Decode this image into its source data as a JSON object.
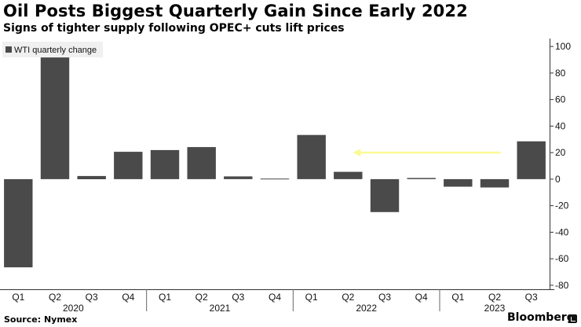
{
  "header": {
    "title": "Oil Posts Biggest Quarterly Gain Since Early 2022",
    "subtitle": "Signs of tighter supply following OPEC+ cuts lift prices"
  },
  "footer": {
    "source": "Source: Nymex",
    "brand": "Bloomberg"
  },
  "chart_data": {
    "type": "bar",
    "categories": [
      "Q1",
      "Q2",
      "Q3",
      "Q4",
      "Q1",
      "Q2",
      "Q3",
      "Q4",
      "Q1",
      "Q2",
      "Q3",
      "Q4",
      "Q1",
      "Q2",
      "Q3"
    ],
    "years": [
      {
        "label": "2020",
        "quarters": [
          "Q1",
          "Q2",
          "Q3",
          "Q4"
        ]
      },
      {
        "label": "2021",
        "quarters": [
          "Q1",
          "Q2",
          "Q3",
          "Q4"
        ]
      },
      {
        "label": "2022",
        "quarters": [
          "Q1",
          "Q2",
          "Q3",
          "Q4"
        ]
      },
      {
        "label": "2023",
        "quarters": [
          "Q1",
          "Q2",
          "Q3"
        ]
      }
    ],
    "series": [
      {
        "name": "WTI quarterly change",
        "values": [
          -66.5,
          91.7,
          2.4,
          20.6,
          21.9,
          24.2,
          2.1,
          0.4,
          33.3,
          5.5,
          -24.8,
          0.9,
          -5.7,
          -6.3,
          28.5
        ]
      }
    ],
    "y_ticks": [
      -80,
      -60,
      -40,
      -20,
      0,
      20,
      40,
      60,
      80,
      100
    ],
    "ylim": [
      -83,
      106
    ],
    "y_axis_position": "right",
    "legend_position": "top-left",
    "grid": false,
    "bar_color": "#4a4a4a",
    "annotation": {
      "type": "arrow",
      "color": "#fafa96",
      "from_category_index": 13,
      "to_category_index": 9,
      "value": 20
    }
  }
}
